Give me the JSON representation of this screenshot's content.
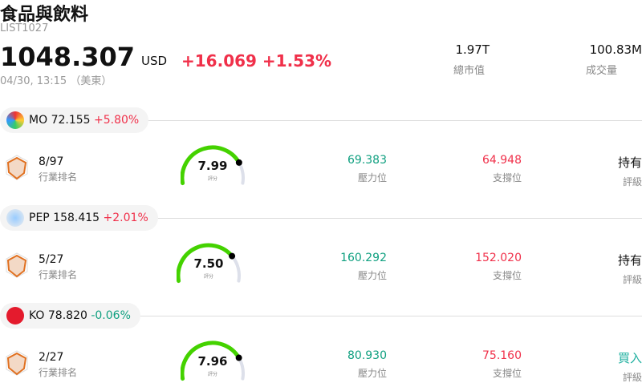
{
  "header": {
    "title": "食品與飲料",
    "code": "LIST1027",
    "price": "1048.307",
    "currency": "USD",
    "change": "+16.069",
    "change_pct": "+1.53%",
    "time": "04/30, 13:15 （美東）",
    "market_cap": {
      "value": "1.97T",
      "label": "總市值"
    },
    "volume": {
      "value": "100.83M",
      "label": "成交量"
    }
  },
  "stocks": [
    {
      "symbol": "MO",
      "price": "72.155",
      "change": "+5.80%",
      "dir": "up",
      "rank": "8/97",
      "rank_label": "行業排名",
      "score": "7.99",
      "score_value": 7.99,
      "score_label": "評分",
      "resistance": "69.383",
      "resistance_label": "壓力位",
      "support": "64.948",
      "support_label": "支撐位",
      "rating": "持有",
      "rating_label": "評級",
      "rating_color": "#111111"
    },
    {
      "symbol": "PEP",
      "price": "158.415",
      "change": "+2.01%",
      "dir": "up",
      "rank": "5/27",
      "rank_label": "行業排名",
      "score": "7.50",
      "score_value": 7.5,
      "score_label": "評分",
      "resistance": "160.292",
      "resistance_label": "壓力位",
      "support": "152.020",
      "support_label": "支撐位",
      "rating": "持有",
      "rating_label": "評級",
      "rating_color": "#111111"
    },
    {
      "symbol": "KO",
      "price": "78.820",
      "change": "-0.06%",
      "dir": "dn",
      "rank": "2/27",
      "rank_label": "行業排名",
      "score": "7.96",
      "score_value": 7.96,
      "score_label": "評分",
      "resistance": "80.930",
      "resistance_label": "壓力位",
      "support": "75.160",
      "support_label": "支撐位",
      "rating": "買入",
      "rating_label": "評級",
      "rating_color": "#20b0a0"
    }
  ],
  "colors": {
    "up": "#f0304a",
    "down": "#10a080",
    "gauge_fill": "#44d200",
    "gauge_track": "#dde0ea"
  }
}
